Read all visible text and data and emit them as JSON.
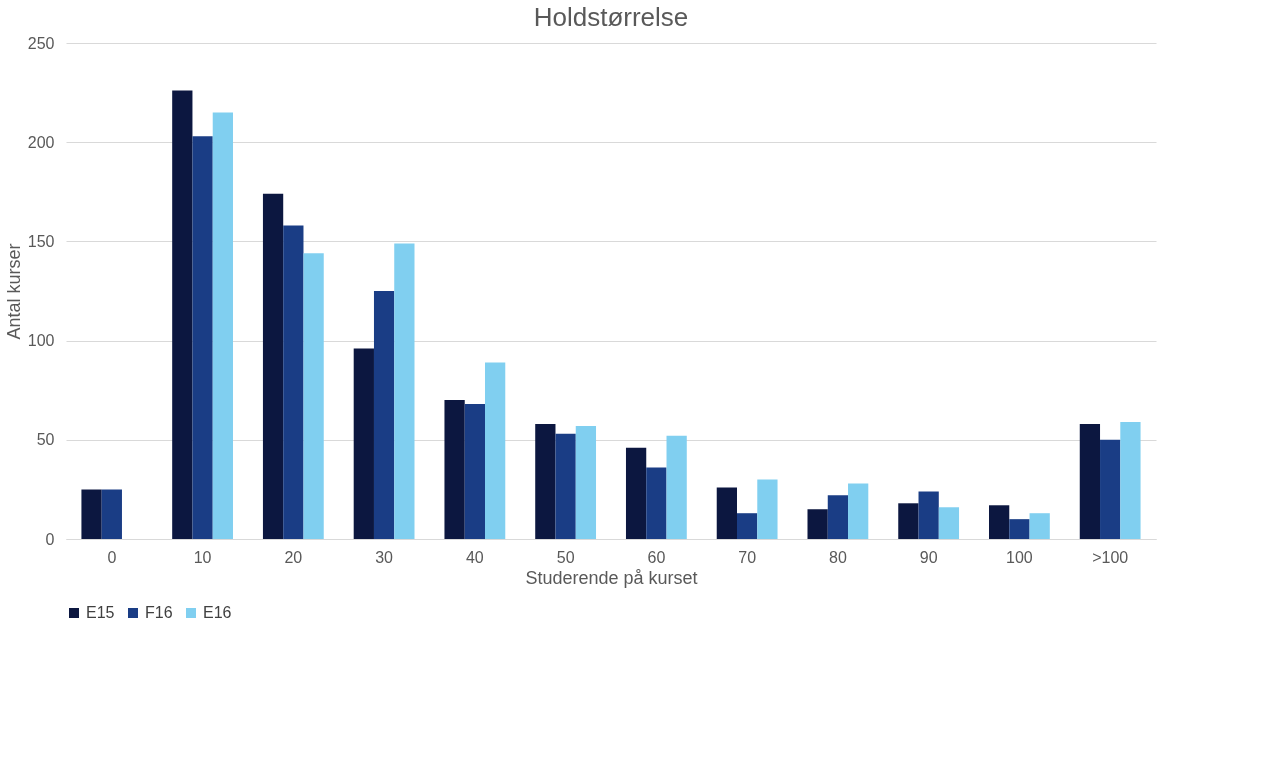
{
  "chart_data": {
    "type": "bar",
    "title": "Holdstørrelse",
    "xlabel": "Studerende på kurset",
    "ylabel": "Antal kurser",
    "categories": [
      "0",
      "10",
      "20",
      "30",
      "40",
      "50",
      "60",
      "70",
      "80",
      "90",
      "100",
      ">100"
    ],
    "series": [
      {
        "name": "E15",
        "color": "#0c1740",
        "values": [
          25,
          226,
          174,
          96,
          70,
          58,
          46,
          26,
          15,
          18,
          17,
          58
        ]
      },
      {
        "name": "F16",
        "color": "#1a3d85",
        "values": [
          25,
          203,
          158,
          125,
          68,
          53,
          36,
          13,
          22,
          24,
          10,
          50
        ]
      },
      {
        "name": "E16",
        "color": "#80cff0",
        "values": [
          null,
          215,
          144,
          149,
          89,
          57,
          52,
          30,
          28,
          16,
          13,
          59
        ]
      }
    ],
    "ylim": [
      0,
      250
    ],
    "yticks": [
      0,
      50,
      100,
      150,
      200,
      250
    ],
    "grid": "y",
    "legend": "bottom"
  }
}
